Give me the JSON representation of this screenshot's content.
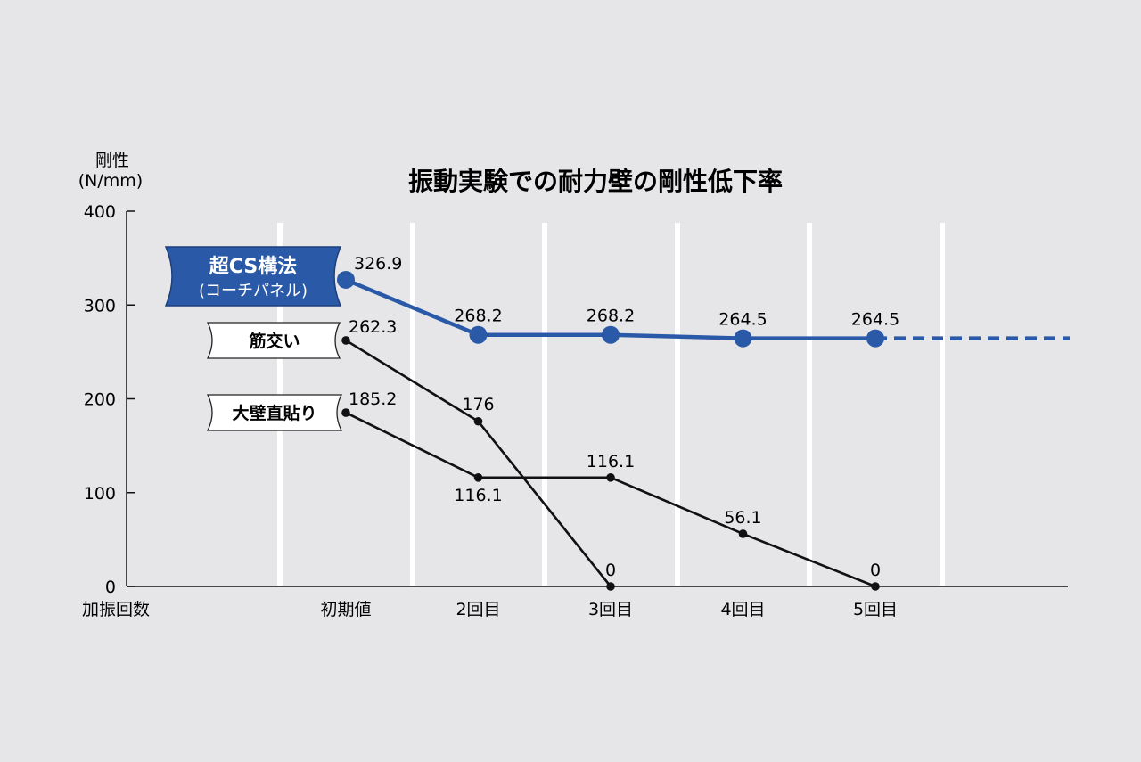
{
  "chart_data": {
    "type": "line",
    "title": "振動実験での耐力壁の剛性低下率",
    "ylabel": "剛性",
    "yunit": "(N/mm)",
    "xlabel": "加振回数",
    "ylim": [
      0,
      400
    ],
    "yticks": [
      0,
      100,
      200,
      300,
      400
    ],
    "categories": [
      "初期値",
      "2回目",
      "3回目",
      "4回目",
      "5回目"
    ],
    "grid": "vertical",
    "series": [
      {
        "key": "cs",
        "name": "超CS構法",
        "subname": "(コーチパネル)",
        "color": "#2a5aa7",
        "values": [
          326.9,
          268.2,
          268.2,
          264.5,
          264.5
        ],
        "labels": [
          "326.9",
          "268.2",
          "268.2",
          "264.5",
          "264.5"
        ],
        "continues_dashed": true
      },
      {
        "key": "sujikai",
        "name": "筋交い",
        "color": "#111111",
        "values": [
          262.3,
          176,
          0,
          null,
          null
        ],
        "labels": [
          "262.3",
          "176",
          "0",
          null,
          null
        ]
      },
      {
        "key": "ohkabe",
        "name": "大壁直貼り",
        "color": "#111111",
        "values": [
          185.2,
          116.1,
          116.1,
          56.1,
          0
        ],
        "labels": [
          "185.2",
          "116.1",
          "116.1",
          "56.1",
          "0"
        ]
      }
    ]
  }
}
